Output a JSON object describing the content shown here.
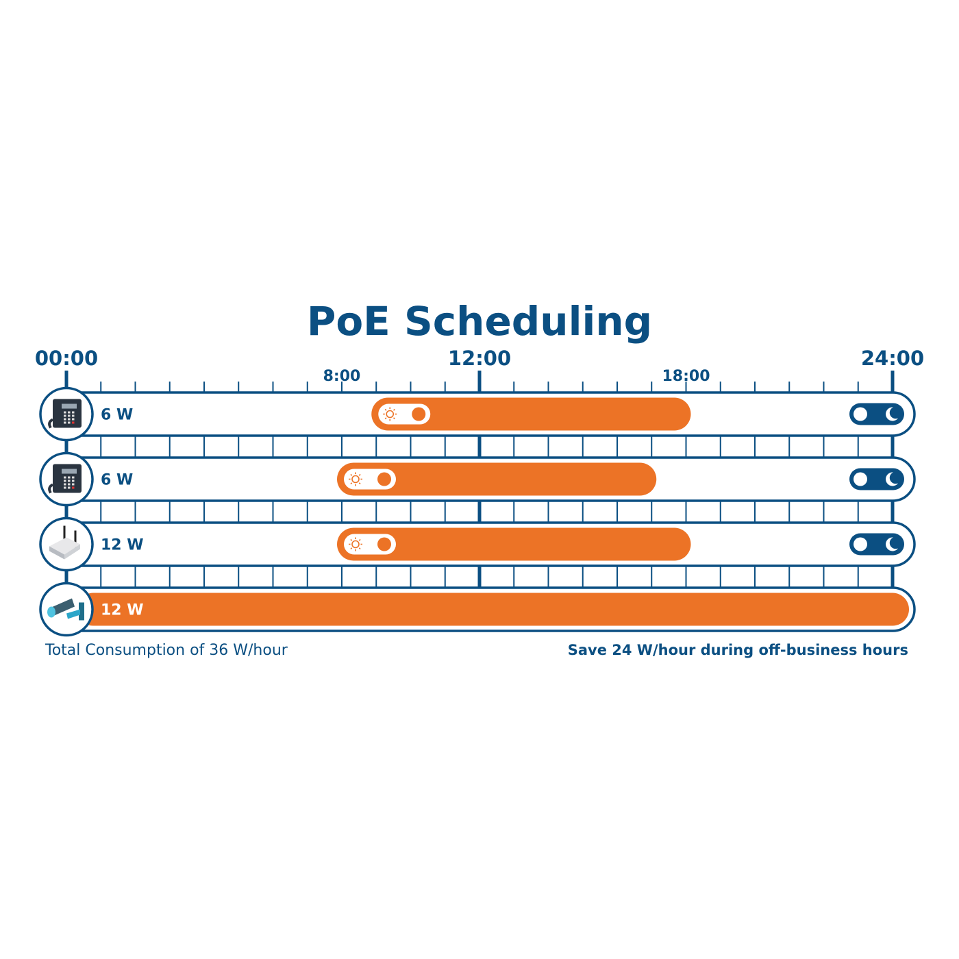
{
  "title": "PoE Scheduling",
  "colors": {
    "blue": "#0b4f82",
    "orange": "#ec7326",
    "white": "#ffffff"
  },
  "time_axis": {
    "start_hour": 0,
    "end_hour": 24,
    "tick_every_hours": 1,
    "major_labels": [
      {
        "hour": 0,
        "label": "00:00"
      },
      {
        "hour": 12,
        "label": "12:00"
      },
      {
        "hour": 24,
        "label": "24:00"
      }
    ],
    "minor_labels": [
      {
        "hour": 8,
        "label": "8:00"
      },
      {
        "hour": 18,
        "label": "18:00"
      }
    ]
  },
  "rows": [
    {
      "device": "desk-phone",
      "icon": "phone-icon",
      "power": "6 W",
      "scheduled": true,
      "on_hour": 9,
      "off_hour": 18
    },
    {
      "device": "desk-phone",
      "icon": "phone-icon",
      "power": "6 W",
      "scheduled": true,
      "on_hour": 8,
      "off_hour": 17
    },
    {
      "device": "wireless-access-point",
      "icon": "router-icon",
      "power": "12 W",
      "scheduled": true,
      "on_hour": 8,
      "off_hour": 18
    },
    {
      "device": "security-camera",
      "icon": "camera-icon",
      "power": "12 W",
      "scheduled": false,
      "on_hour": 0,
      "off_hour": 24
    }
  ],
  "footer": {
    "left": "Total Consumption of 36 W/hour",
    "right": "Save 24 W/hour during off-business hours"
  }
}
